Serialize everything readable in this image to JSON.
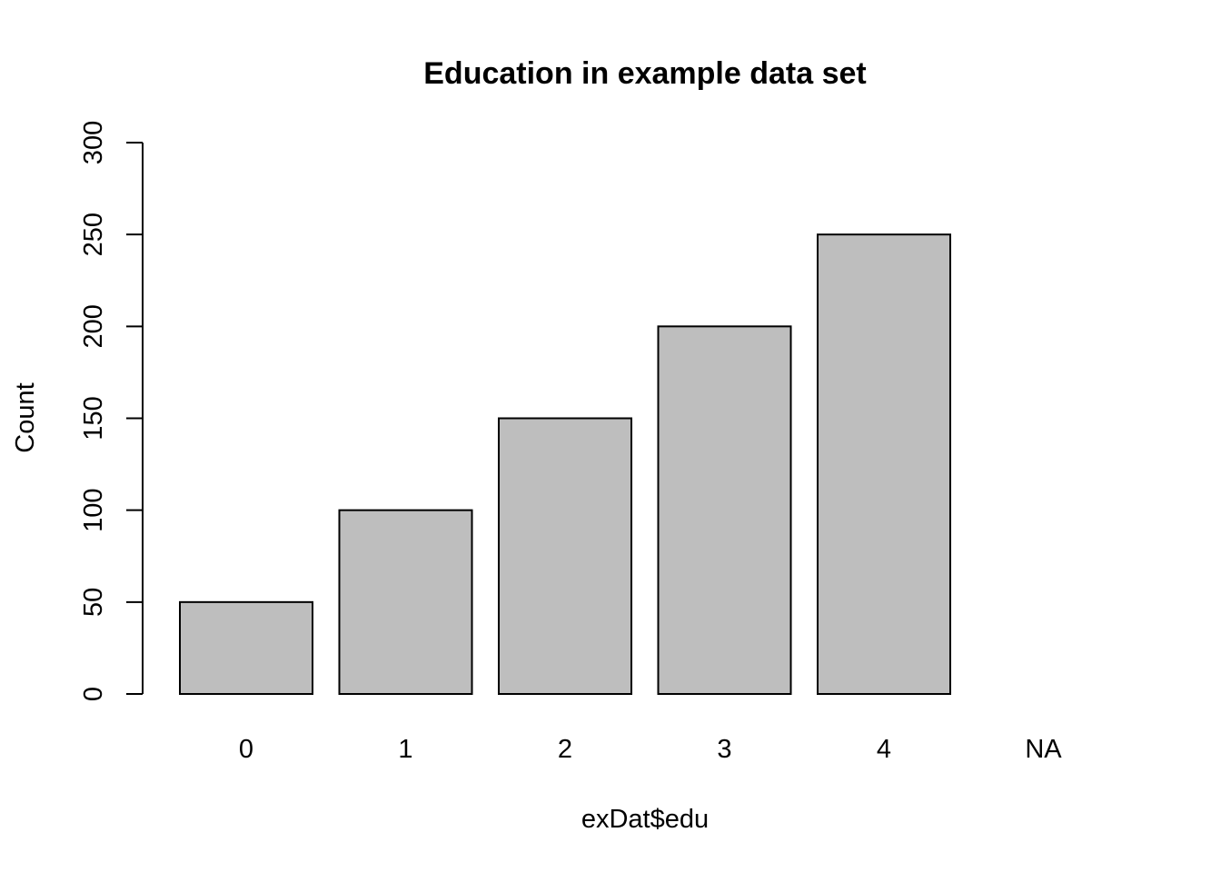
{
  "chart_data": {
    "type": "bar",
    "title": "Education in example data set",
    "xlabel": "exDat$edu",
    "ylabel": "Count",
    "categories": [
      "0",
      "1",
      "2",
      "3",
      "4",
      "NA"
    ],
    "values": [
      50,
      100,
      150,
      200,
      250,
      0
    ],
    "ylim": [
      0,
      300
    ],
    "yticks": [
      0,
      50,
      100,
      150,
      200,
      250,
      300
    ],
    "ytick_labels": [
      "0",
      "50",
      "100",
      "150",
      "200",
      "250",
      "300"
    ],
    "bar_color": "#bebebe",
    "grid": false,
    "legend": "none"
  }
}
